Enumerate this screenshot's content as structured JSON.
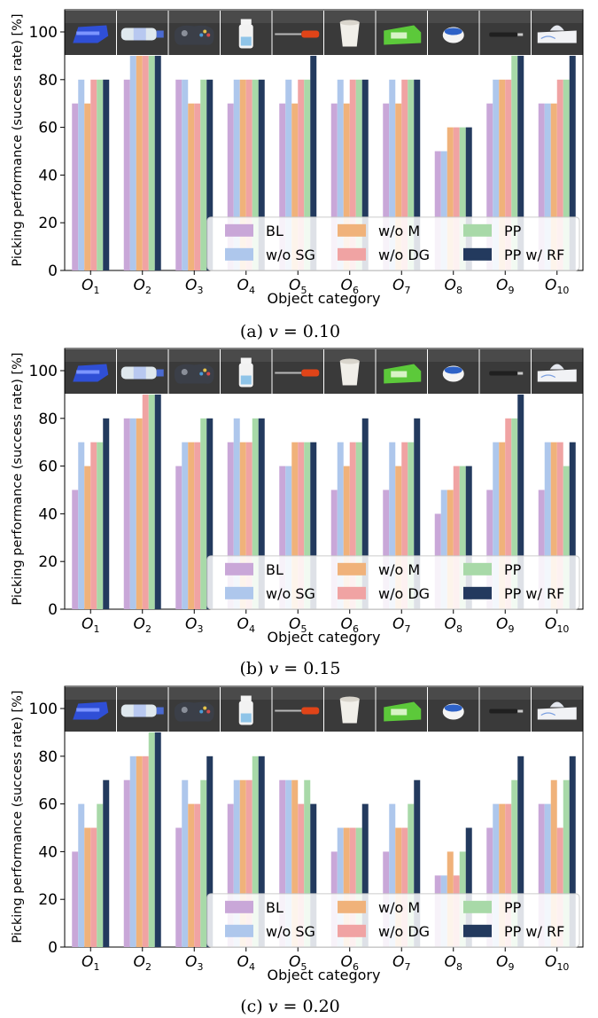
{
  "series_names": [
    "BL",
    "w/o SG",
    "w/o M",
    "w/o DG",
    "PP",
    "PP w/ RF"
  ],
  "series_colors": [
    "#c9a7d8",
    "#aec7ec",
    "#f0b27a",
    "#f0a3a3",
    "#a8d9a8",
    "#233a5e"
  ],
  "object_icons": [
    "stapler-icon",
    "water-bottle-icon",
    "game-controller-icon",
    "spray-bottle-icon",
    "screwdriver-icon",
    "paper-cup-icon",
    "tissue-box-icon",
    "tape-roll-icon",
    "marker-pen-icon",
    "facial-tissue-box-icon"
  ],
  "chart_data": [
    {
      "type": "bar",
      "caption": "(a) v = 0.10",
      "xlabel": "Object category",
      "ylabel": "Picking performance (success rate) [%]",
      "categories": [
        "O1",
        "O2",
        "O3",
        "O4",
        "O5",
        "O6",
        "O7",
        "O8",
        "O9",
        "O10"
      ],
      "ylim": [
        0,
        110
      ],
      "yticks": [
        0,
        20,
        40,
        60,
        80,
        100
      ],
      "legend_position": "lower-right",
      "series": [
        {
          "name": "BL",
          "values": [
            70,
            80,
            80,
            70,
            70,
            70,
            70,
            50,
            70,
            70
          ]
        },
        {
          "name": "w/o SG",
          "values": [
            80,
            90,
            80,
            80,
            80,
            80,
            80,
            50,
            80,
            70
          ]
        },
        {
          "name": "w/o M",
          "values": [
            70,
            90,
            70,
            80,
            70,
            70,
            70,
            60,
            80,
            70
          ]
        },
        {
          "name": "w/o DG",
          "values": [
            80,
            90,
            70,
            80,
            80,
            80,
            80,
            60,
            80,
            80
          ]
        },
        {
          "name": "PP",
          "values": [
            80,
            90,
            80,
            80,
            80,
            80,
            80,
            60,
            90,
            80
          ]
        },
        {
          "name": "PP w/ RF",
          "values": [
            80,
            90,
            80,
            80,
            90,
            80,
            80,
            60,
            90,
            90
          ]
        }
      ]
    },
    {
      "type": "bar",
      "caption": "(b) v = 0.15",
      "xlabel": "Object category",
      "ylabel": "Picking performance (success rate) [%]",
      "categories": [
        "O1",
        "O2",
        "O3",
        "O4",
        "O5",
        "O6",
        "O7",
        "O8",
        "O9",
        "O10"
      ],
      "ylim": [
        0,
        110
      ],
      "yticks": [
        0,
        20,
        40,
        60,
        80,
        100
      ],
      "legend_position": "lower-right",
      "series": [
        {
          "name": "BL",
          "values": [
            50,
            80,
            60,
            70,
            60,
            50,
            50,
            40,
            50,
            50
          ]
        },
        {
          "name": "w/o SG",
          "values": [
            70,
            80,
            70,
            80,
            60,
            70,
            70,
            50,
            70,
            70
          ]
        },
        {
          "name": "w/o M",
          "values": [
            60,
            80,
            70,
            70,
            70,
            60,
            60,
            50,
            70,
            70
          ]
        },
        {
          "name": "w/o DG",
          "values": [
            70,
            90,
            70,
            70,
            70,
            70,
            70,
            60,
            80,
            70
          ]
        },
        {
          "name": "PP",
          "values": [
            70,
            90,
            80,
            80,
            70,
            70,
            70,
            60,
            80,
            60
          ]
        },
        {
          "name": "PP w/ RF",
          "values": [
            80,
            90,
            80,
            80,
            70,
            80,
            80,
            60,
            90,
            70
          ]
        }
      ]
    },
    {
      "type": "bar",
      "caption": "(c) v = 0.20",
      "xlabel": "Object category",
      "ylabel": "Picking performance (success rate) [%]",
      "categories": [
        "O1",
        "O2",
        "O3",
        "O4",
        "O5",
        "O6",
        "O7",
        "O8",
        "O9",
        "O10"
      ],
      "ylim": [
        0,
        110
      ],
      "yticks": [
        0,
        20,
        40,
        60,
        80,
        100
      ],
      "legend_position": "lower-right",
      "series": [
        {
          "name": "BL",
          "values": [
            40,
            70,
            50,
            60,
            70,
            40,
            40,
            30,
            50,
            60
          ]
        },
        {
          "name": "w/o SG",
          "values": [
            60,
            80,
            70,
            70,
            70,
            50,
            60,
            30,
            60,
            60
          ]
        },
        {
          "name": "w/o M",
          "values": [
            50,
            80,
            60,
            70,
            70,
            50,
            50,
            40,
            60,
            70
          ]
        },
        {
          "name": "w/o DG",
          "values": [
            50,
            80,
            60,
            70,
            60,
            50,
            50,
            30,
            60,
            50
          ]
        },
        {
          "name": "PP",
          "values": [
            60,
            90,
            70,
            80,
            70,
            50,
            60,
            40,
            70,
            70
          ]
        },
        {
          "name": "PP w/ RF",
          "values": [
            70,
            90,
            80,
            80,
            60,
            60,
            70,
            50,
            80,
            80
          ]
        }
      ]
    }
  ]
}
